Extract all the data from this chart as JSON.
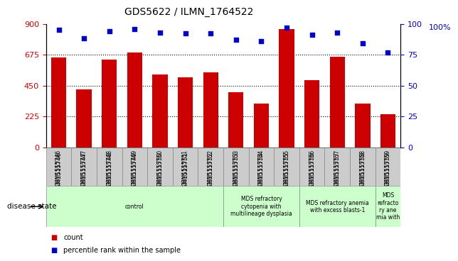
{
  "title": "GDS5622 / ILMN_1764522",
  "samples": [
    "GSM1515746",
    "GSM1515747",
    "GSM1515748",
    "GSM1515749",
    "GSM1515750",
    "GSM1515751",
    "GSM1515752",
    "GSM1515753",
    "GSM1515754",
    "GSM1515755",
    "GSM1515756",
    "GSM1515757",
    "GSM1515758",
    "GSM1515759"
  ],
  "counts": [
    655,
    420,
    640,
    690,
    530,
    510,
    545,
    400,
    320,
    860,
    490,
    660,
    320,
    240
  ],
  "percentiles": [
    95,
    88,
    94,
    96,
    93,
    92,
    92,
    87,
    86,
    97,
    91,
    93,
    84,
    77
  ],
  "bar_color": "#cc0000",
  "dot_color": "#0000cc",
  "ylim_left": [
    0,
    900
  ],
  "ylim_right": [
    0,
    100
  ],
  "yticks_left": [
    0,
    225,
    450,
    675,
    900
  ],
  "yticks_right": [
    0,
    25,
    50,
    75,
    100
  ],
  "disease_groups": [
    {
      "label": "control",
      "start": 0,
      "end": 7,
      "color": "#ccffcc"
    },
    {
      "label": "MDS refractory\ncytopenia with\nmultilineage dysplasia",
      "start": 7,
      "end": 10,
      "color": "#ccffcc"
    },
    {
      "label": "MDS refractory anemia\nwith excess blasts-1",
      "start": 10,
      "end": 13,
      "color": "#ccffcc"
    },
    {
      "label": "MDS\nrefracto\nry ane\nmia with",
      "start": 13,
      "end": 14,
      "color": "#ccffcc"
    }
  ],
  "legend_count_label": "count",
  "legend_pct_label": "percentile rank within the sample",
  "disease_state_label": "disease state"
}
